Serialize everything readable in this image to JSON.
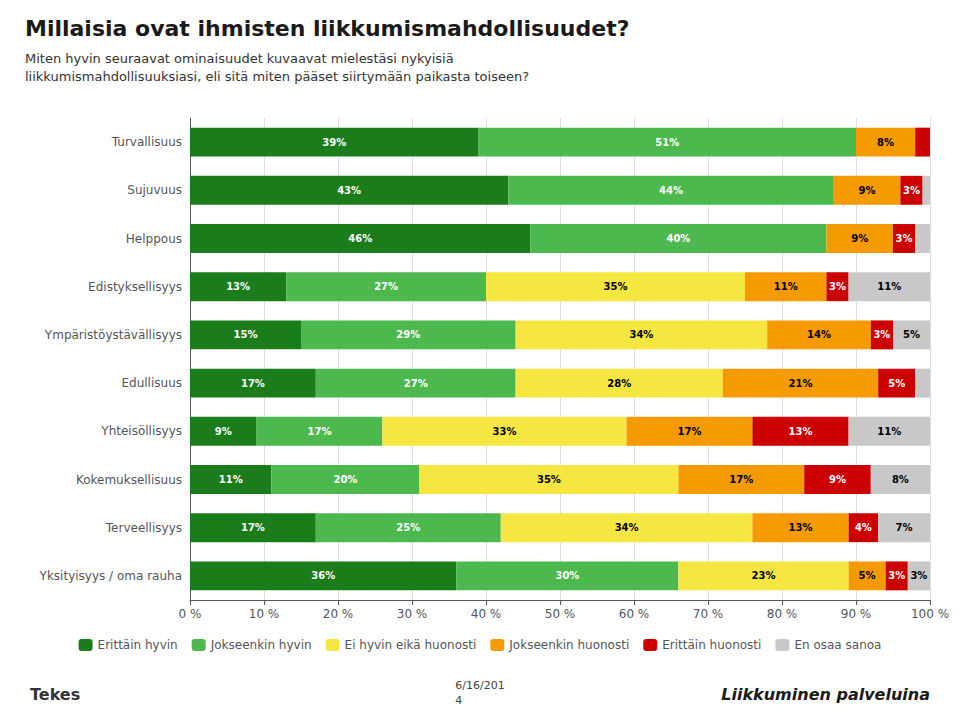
{
  "chart_data": {
    "type": "bar",
    "orientation": "horizontal",
    "stacked": true,
    "title": "Millaisia ovat ihmisten liikkumismahdollisuudet?",
    "subtitle": "Miten hyvin seuraavat ominaisuudet kuvaavat mielestäsi nykyisiä\nliikkumismahdollisuuksiasi, eli sitä miten pääset siirtymään paikasta toiseen?",
    "categories": [
      "Turvallisuus",
      "Sujuvuus",
      "Helppous",
      "Edistyksellisyys",
      "Ympäristöystävällisyys",
      "Edullisuus",
      "Yhteisöllisyys",
      "Kokemuksellisuus",
      "Terveellisyys",
      "Yksityisyys / oma rauha"
    ],
    "series": [
      {
        "name": "Erittäin hyvin",
        "color": "#1a7c1a",
        "values": [
          39,
          43,
          46,
          13,
          15,
          17,
          9,
          11,
          17,
          36
        ],
        "value_labels": [
          "39%",
          "43%",
          "46%",
          "13%",
          "15%",
          "17%",
          "9%",
          "11%",
          "17%",
          "36%"
        ]
      },
      {
        "name": "Jokseenkin hyvin",
        "color": "#4db84d",
        "values": [
          51,
          44,
          40,
          27,
          29,
          27,
          17,
          20,
          25,
          30
        ],
        "value_labels": [
          "51%",
          "44%",
          "40%",
          "27%",
          "29%",
          "27%",
          "17%",
          "20%",
          "25%",
          "30%"
        ]
      },
      {
        "name": "Ei hyvin eikä huonosti",
        "color": "#f5e642",
        "values": [
          0,
          0,
          0,
          35,
          34,
          28,
          33,
          35,
          34,
          23
        ],
        "value_labels": [
          null,
          null,
          null,
          "35%",
          "34%",
          "28%",
          "33%",
          "35%",
          "34%",
          "23%"
        ]
      },
      {
        "name": "Jokseenkin huonosti",
        "color": "#f59a00",
        "values": [
          8,
          9,
          9,
          11,
          14,
          21,
          17,
          17,
          13,
          5
        ],
        "value_labels": [
          "8%",
          "9%",
          "9%",
          "11%",
          "14%",
          "21%",
          "17%",
          "17%",
          "13%",
          "5%"
        ]
      },
      {
        "name": "Erittäin huonosti",
        "color": "#cc0000",
        "values": [
          2,
          3,
          3,
          3,
          3,
          5,
          13,
          9,
          4,
          3
        ],
        "value_labels": [
          null,
          "3%",
          "3%",
          "3%",
          "3%",
          "5%",
          "13%",
          "9%",
          "4%",
          "3%"
        ]
      },
      {
        "name": "En osaa sanoa",
        "color": "#c8c8c8",
        "values": [
          0,
          1,
          2,
          11,
          5,
          2,
          11,
          8,
          7,
          3
        ],
        "value_labels": [
          null,
          null,
          null,
          "11%",
          "5%",
          null,
          "11%",
          "8%",
          "7%",
          "3%"
        ]
      }
    ],
    "xlim": [
      0,
      100
    ],
    "xticks": [
      {
        "value": 0,
        "label": "0 %"
      },
      {
        "value": 10,
        "label": "10 %"
      },
      {
        "value": 20,
        "label": "20 %"
      },
      {
        "value": 30,
        "label": "30 %"
      },
      {
        "value": 40,
        "label": "40 %"
      },
      {
        "value": 50,
        "label": "50 %"
      },
      {
        "value": 60,
        "label": "60 %"
      },
      {
        "value": 70,
        "label": "70 %"
      },
      {
        "value": 80,
        "label": "80 %"
      },
      {
        "value": 90,
        "label": "90 %"
      },
      {
        "value": 100,
        "label": "100 %"
      }
    ],
    "grid": true,
    "legend": "bottom",
    "data_labels": true,
    "annotations": [
      "Tekes",
      "6/16/201\n4",
      "Liikkuminen palveluina"
    ]
  }
}
